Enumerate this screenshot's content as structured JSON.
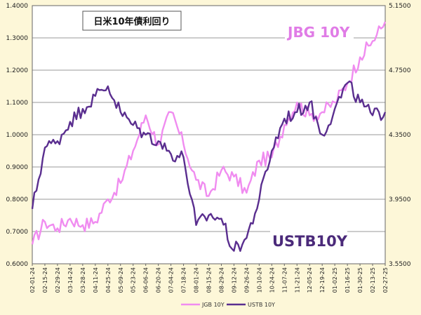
{
  "chart_data": {
    "type": "line",
    "title": "日米10年債利回り",
    "categories": [
      "02-01-24",
      "02-15-24",
      "02-29-24",
      "03-14-24",
      "03-28-24",
      "04-11-24",
      "04-25-24",
      "05-09-24",
      "05-23-24",
      "06-06-24",
      "06-20-24",
      "07-04-24",
      "07-18-24",
      "08-01-24",
      "08-15-24",
      "08-29-24",
      "09-12-24",
      "09-26-24",
      "10-10-24",
      "10-24-24",
      "11-07-24",
      "11-21-24",
      "12-05-24",
      "12-19-24",
      "01-02-25",
      "01-16-25",
      "01-30-25",
      "02-13-25",
      "02-27-25"
    ],
    "y_left": {
      "ticks": [
        "0.6000",
        "0.7000",
        "0.8000",
        "0.9000",
        "1.0000",
        "1.1000",
        "1.2000",
        "1.3000",
        "1.4000"
      ],
      "ylim": [
        0.6,
        1.4
      ]
    },
    "y_right": {
      "ticks": [
        "3.5500",
        "3.9500",
        "4.3500",
        "4.7500",
        "5.1500"
      ],
      "ylim": [
        3.55,
        5.15
      ]
    },
    "grid": true,
    "legend_position": "bottom",
    "series": [
      {
        "name": "JGB 10Y",
        "axis": "left",
        "color": "#f08cf0",
        "label": "JBG 10Y",
        "values": [
          0.66,
          0.73,
          0.71,
          0.74,
          0.72,
          0.73,
          0.8,
          0.85,
          0.95,
          1.06,
          0.97,
          1.07,
          0.97,
          0.86,
          0.81,
          0.89,
          0.87,
          0.82,
          0.92,
          0.93,
          1.03,
          1.1,
          1.06,
          1.07,
          1.1,
          1.16,
          1.24,
          1.29,
          1.35
        ]
      },
      {
        "name": "USTB 10Y",
        "axis": "left",
        "color": "#5a2e8f",
        "label": "USTB10Y",
        "values": [
          0.77,
          0.96,
          0.98,
          1.04,
          1.08,
          1.12,
          1.15,
          1.07,
          1.03,
          1.0,
          0.98,
          0.94,
          0.93,
          0.72,
          0.75,
          0.74,
          0.64,
          0.68,
          0.8,
          0.95,
          1.05,
          1.07,
          1.1,
          1.0,
          1.08,
          1.16,
          1.1,
          1.06,
          1.07
        ]
      }
    ]
  }
}
